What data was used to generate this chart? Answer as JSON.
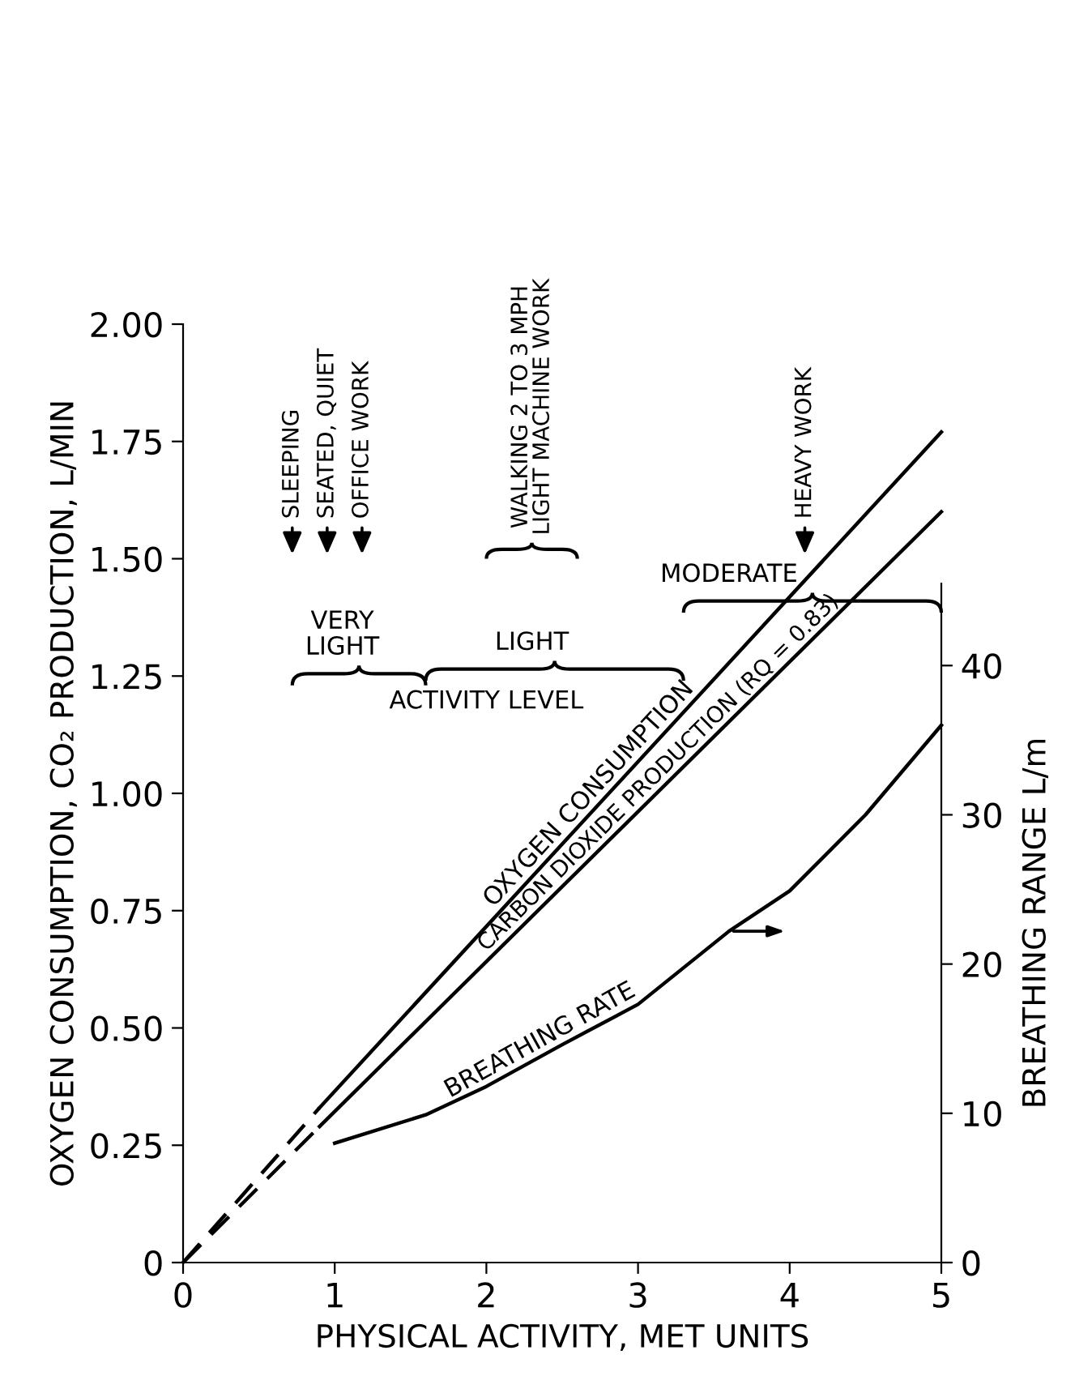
{
  "chart_data": {
    "type": "line",
    "xlabel": "PHYSICAL ACTIVITY, MET UNITS",
    "ylabel": "OXYGEN CONSUMPTION, CO₂ PRODUCTION, L/MIN",
    "y2label": "BREATHING RANGE L/m",
    "xlim": [
      0,
      5
    ],
    "ylim": [
      0,
      2.0
    ],
    "y2lim": [
      0,
      45.5
    ],
    "xticks": [
      0,
      1,
      2,
      3,
      4,
      5
    ],
    "yticks": [
      {
        "value": 0,
        "label": "0"
      },
      0.25,
      {
        "value": 0.5,
        "label": "0.50"
      },
      0.75,
      {
        "value": 1.0,
        "label": "1.00"
      },
      1.25,
      {
        "value": 1.5,
        "label": "1.50"
      },
      1.75,
      {
        "value": 2.0,
        "label": "2.00"
      }
    ],
    "y2ticks": [
      0,
      10,
      20,
      30,
      40
    ],
    "series": [
      {
        "color": "#000000",
        "line_style": "dashed",
        "x": [
          0,
          0.9
        ],
        "values": [
          0,
          0.33
        ]
      },
      {
        "name": "OXYGEN CONSUMPTION",
        "color": "#000000",
        "line_style": "solid",
        "x": [
          0.9,
          5
        ],
        "values": [
          0.33,
          1.77
        ]
      },
      {
        "color": "#000000",
        "line_style": "dashed",
        "x": [
          0,
          0.9
        ],
        "values": [
          0,
          0.29
        ]
      },
      {
        "name": "CARBON DIOXIDE PRODUCTION (RQ = 0.83)",
        "color": "#000000",
        "line_style": "solid",
        "x": [
          0.9,
          5
        ],
        "values": [
          0.29,
          1.6
        ]
      },
      {
        "name": "BREATHING RATE",
        "color": "#000000",
        "line_style": "solid",
        "axis": "y2",
        "x": [
          1,
          1.6,
          2,
          2.5,
          3,
          3.6,
          4,
          4.5,
          5
        ],
        "values": [
          8.0,
          9.9,
          11.8,
          14.6,
          17.3,
          22.2,
          24.9,
          30,
          36
        ]
      }
    ],
    "annotations": [
      "SLEEPING",
      "SEATED, QUIET",
      "OFFICE WORK",
      "WALKING 2 TO 3 MPH\nLIGHT MACHINE WORK",
      "HEAVY WORK",
      "MODERATE",
      "VERY\nLIGHT",
      "LIGHT",
      "ACTIVITY LEVEL"
    ],
    "grid": false
  }
}
